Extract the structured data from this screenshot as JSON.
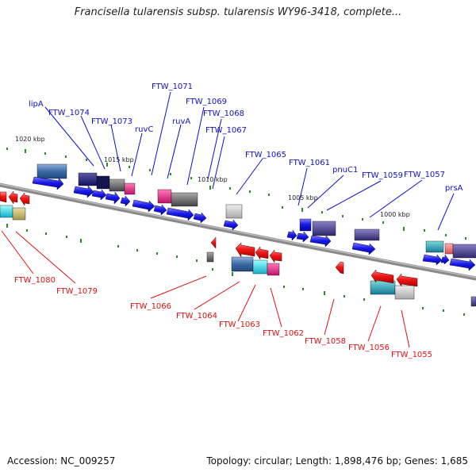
{
  "title": "Francisella tularensis subsp. tularensis WY96-3418, complete...",
  "footer": {
    "accession": "Accession: NC_009257",
    "topology": "Topology: circular; Length: 1,898,476 bp; Genes: 1,685"
  },
  "scale": {
    "ticks": [
      "1020 kbp",
      "1015 kbp",
      "1010 kbp",
      "1005 kbp",
      "1000 kbp"
    ]
  },
  "colors": {
    "forward": "#1010dd",
    "reverse": "#ee1111",
    "backbone": "#888888",
    "tick": "#228822"
  },
  "forward_labels": [
    "lipA",
    "FTW_1074",
    "FTW_1073",
    "ruvC",
    "FTW_1071",
    "ruvA",
    "FTW_1069",
    "FTW_1068",
    "FTW_1067",
    "FTW_1065",
    "FTW_1061",
    "pnuC1",
    "FTW_1059",
    "FTW_1057",
    "prsA"
  ],
  "reverse_labels": [
    "FTW_1080",
    "FTW_1079",
    "FTW_1066",
    "FTW_1064",
    "FTW_1063",
    "FTW_1062",
    "FTW_1058",
    "FTW_1056",
    "FTW_1055"
  ]
}
